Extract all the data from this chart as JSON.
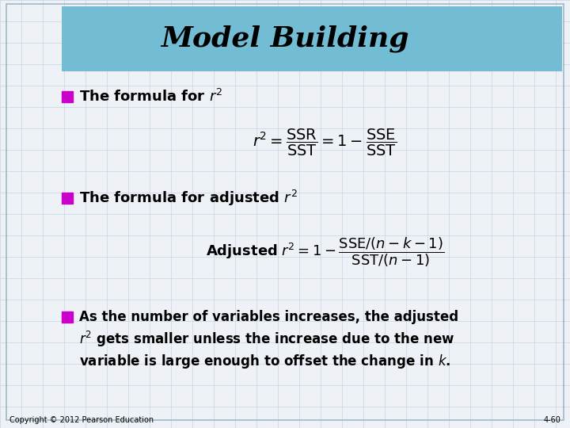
{
  "title": "Model Building",
  "title_bg_color": "#72BDD4",
  "title_fontsize": 26,
  "bg_color": "#EEF2F7",
  "grid_color": "#C5D5E5",
  "bullet_color": "#CC00CC",
  "bullet1_text": "The formula for $r^2$",
  "formula1_latex": "$r^2 = \\dfrac{\\mathrm{SSR}}{\\mathrm{SST}} = 1 - \\dfrac{\\mathrm{SSE}}{\\mathrm{SST}}$",
  "bullet2_text": "The formula for adjusted $r^2$",
  "formula2_latex": "$\\mathrm{\\mathbf{Adjusted}}\\; r^2 = 1 - \\dfrac{\\mathrm{SSE}/(n-k-1)}{\\mathrm{SST}/(n-1)}$",
  "bullet3_line1": "As the number of variables increases, the adjusted",
  "bullet3_line2": "$r^2$ gets smaller unless the increase due to the new",
  "bullet3_line3": "variable is large enough to offset the change in $k$.",
  "footer_left": "Copyright © 2012 Pearson Education",
  "footer_right": "4-60",
  "outer_border_color": "#A0B8C8"
}
